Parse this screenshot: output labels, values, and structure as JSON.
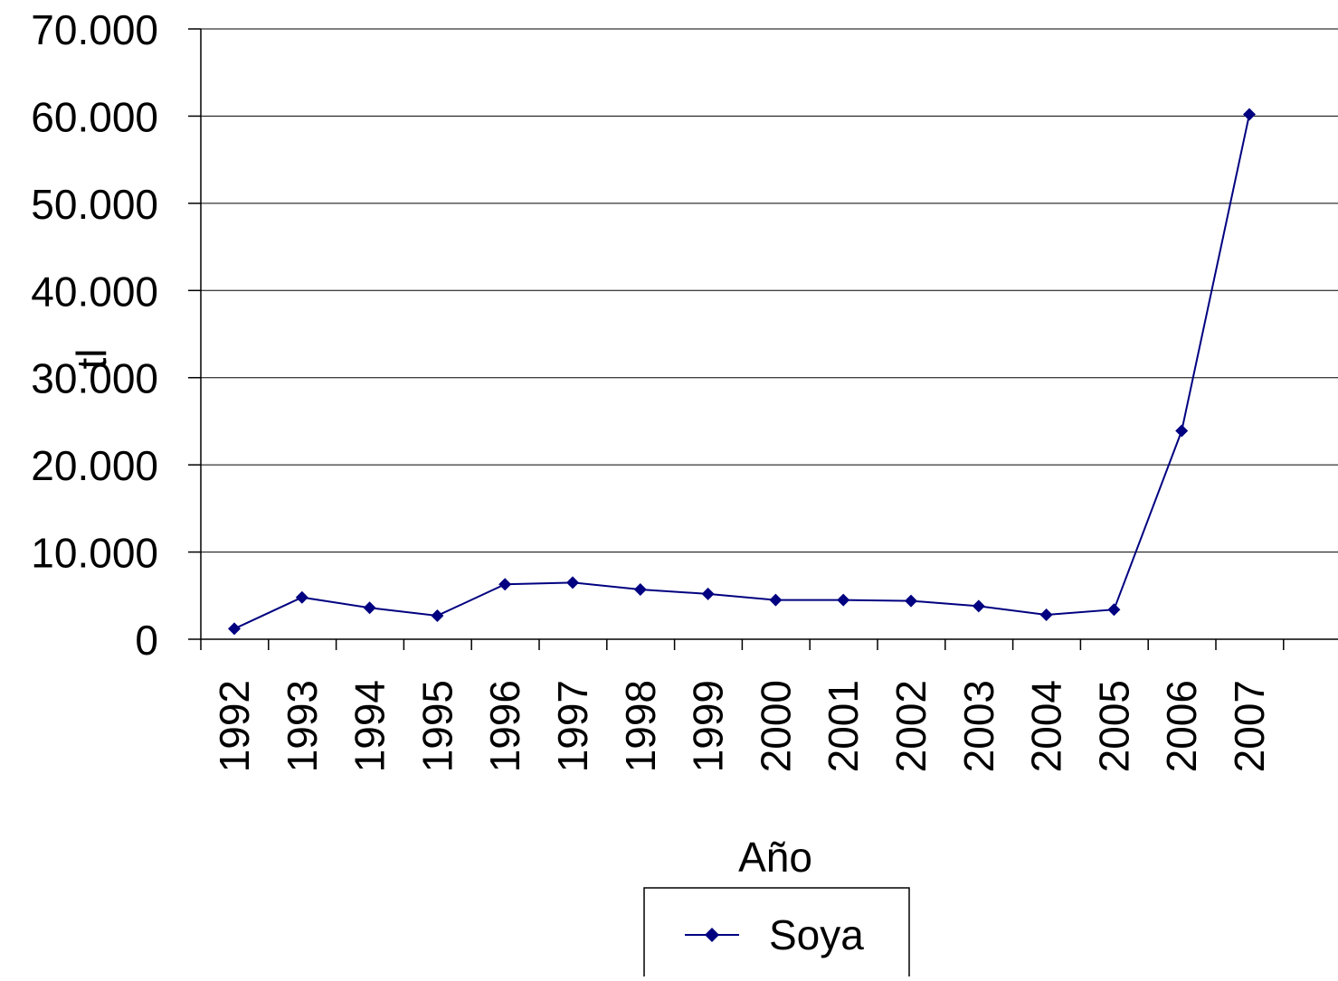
{
  "chart_data": {
    "type": "line",
    "title": "",
    "xlabel": "Año",
    "ylabel": "tl",
    "categories": [
      "1992",
      "1993",
      "1994",
      "1995",
      "1996",
      "1997",
      "1998",
      "1999",
      "2000",
      "2001",
      "2002",
      "2003",
      "2004",
      "2005",
      "2006",
      "2007"
    ],
    "series": [
      {
        "name": "Soya",
        "color": "#000080",
        "marker": "diamond",
        "values": [
          1200,
          4800,
          3600,
          2700,
          6300,
          6500,
          5700,
          5200,
          4500,
          4500,
          4400,
          3800,
          2800,
          3400,
          23900,
          60200
        ]
      }
    ],
    "y_ticks": [
      "0",
      "10.000",
      "20.000",
      "30.000",
      "40.000",
      "50.000",
      "60.000",
      "70.000"
    ],
    "ylim": [
      0,
      70000
    ],
    "y_tick_step": 10000,
    "grid": "horizontal",
    "legend": {
      "position": "bottom",
      "entries": [
        "Soya"
      ]
    }
  }
}
